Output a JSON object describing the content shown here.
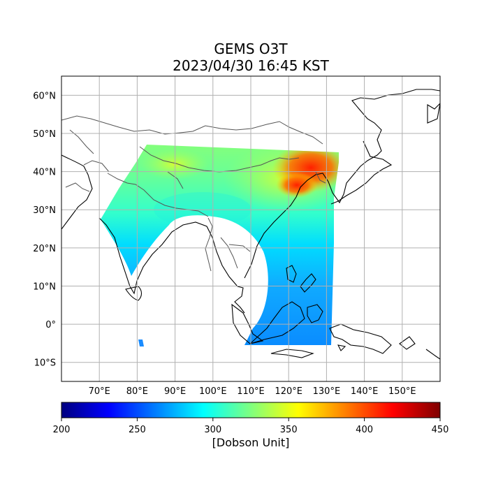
{
  "title": {
    "line1": "GEMS O3T",
    "line2": "2023/04/30 16:45 KST"
  },
  "map": {
    "region": "East and South Asia",
    "lon_range": [
      60,
      160
    ],
    "lat_range": [
      -15,
      65
    ],
    "grid": true,
    "lon_ticks": [
      {
        "value": 70,
        "label": "70°E"
      },
      {
        "value": 80,
        "label": "80°E"
      },
      {
        "value": 90,
        "label": "90°E"
      },
      {
        "value": 100,
        "label": "100°E"
      },
      {
        "value": 110,
        "label": "110°E"
      },
      {
        "value": 120,
        "label": "120°E"
      },
      {
        "value": 130,
        "label": "130°E"
      },
      {
        "value": 140,
        "label": "140°E"
      },
      {
        "value": 150,
        "label": "150°E"
      }
    ],
    "lat_ticks": [
      {
        "value": 60,
        "label": "60°N"
      },
      {
        "value": 50,
        "label": "50°N"
      },
      {
        "value": 40,
        "label": "40°N"
      },
      {
        "value": 30,
        "label": "30°N"
      },
      {
        "value": 20,
        "label": "20°N"
      },
      {
        "value": 10,
        "label": "10°N"
      },
      {
        "value": 0,
        "label": "0°"
      },
      {
        "value": -10,
        "label": "10°S"
      }
    ]
  },
  "colorbar": {
    "min": 200,
    "max": 450,
    "colormap": "jet",
    "ticks": [
      {
        "value": 200,
        "label": "200"
      },
      {
        "value": 250,
        "label": "250"
      },
      {
        "value": 300,
        "label": "300"
      },
      {
        "value": 350,
        "label": "350"
      },
      {
        "value": 400,
        "label": "400"
      },
      {
        "value": 450,
        "label": "450"
      }
    ],
    "label": "[Dobson Unit]"
  },
  "colors": {
    "coastline": "#000000",
    "border": "#555555",
    "gridline": "#b0b0b0",
    "jet_stops": [
      "#00007f",
      "#0000ff",
      "#007fff",
      "#00ffff",
      "#7fff7f",
      "#ffff00",
      "#ff7f00",
      "#ff0000",
      "#7f0000"
    ]
  }
}
